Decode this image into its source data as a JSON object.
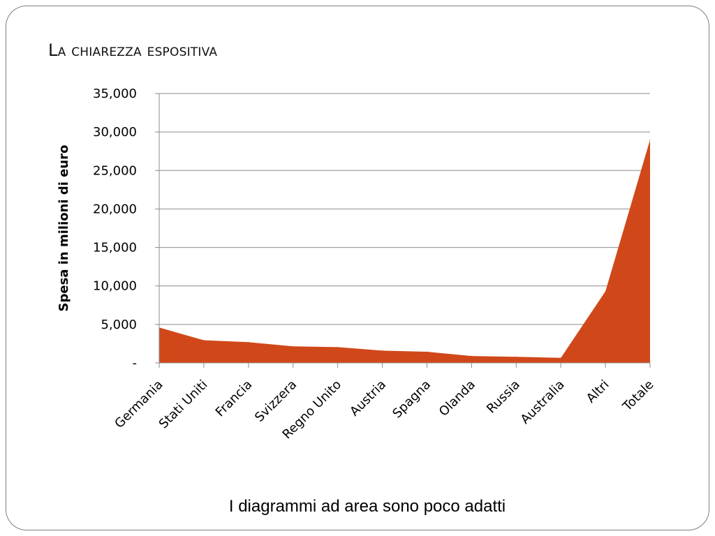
{
  "slide": {
    "title": "La chiarezza espositiva",
    "caption": "I diagrammi ad area sono poco adatti"
  },
  "chart_data": {
    "type": "area",
    "title": "",
    "xlabel": "",
    "ylabel": "Spesa in milioni di euro",
    "categories": [
      "Germania",
      "Stati Uniti",
      "Francia",
      "Svizzera",
      "Regno Unito",
      "Austria",
      "Spagna",
      "Olanda",
      "Russia",
      "Australia",
      "Altri",
      "Totale"
    ],
    "series": [
      {
        "values": [
          4600,
          2950,
          2700,
          2150,
          2050,
          1600,
          1450,
          900,
          800,
          650,
          9300,
          29000
        ]
      }
    ],
    "ylim": [
      0,
      35000
    ],
    "yticks": [
      0,
      5000,
      10000,
      15000,
      20000,
      25000,
      30000,
      35000
    ],
    "ytick_labels": [
      "-",
      "5,000",
      "10,000",
      "15,000",
      "20,000",
      "25,000",
      "30,000",
      "35,000"
    ],
    "grid": true,
    "legend": "none",
    "colors": {
      "fill": "#d0481a",
      "grid": "#8c8c8c",
      "axis": "#8c8c8c"
    }
  }
}
